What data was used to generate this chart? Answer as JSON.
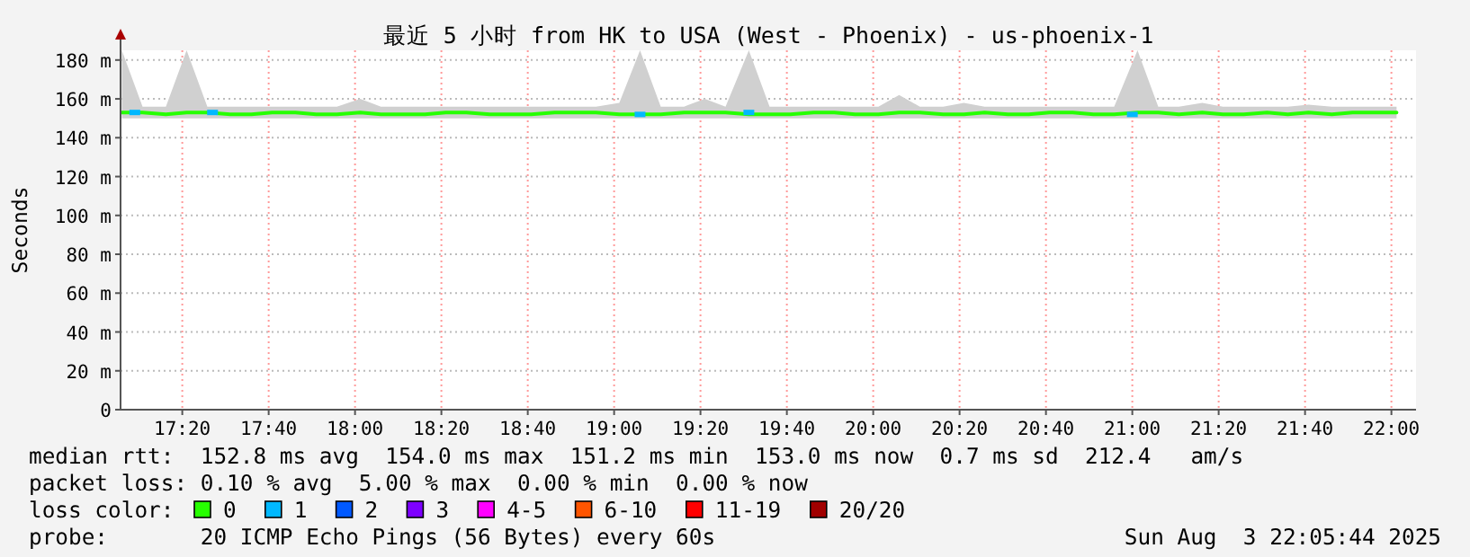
{
  "chart_data": {
    "type": "line",
    "title": "最近 5 小时 from HK to USA (West - Phoenix) - us-phoenix-1",
    "ylabel": "Seconds",
    "legend_title": "loss color:",
    "legend": "bottom",
    "grid": true,
    "xlim": [
      17.095,
      22.095
    ],
    "xticks": [
      {
        "value": 17.3333,
        "label": "17:20"
      },
      {
        "value": 17.6667,
        "label": "17:40"
      },
      {
        "value": 18,
        "label": "18:00"
      },
      {
        "value": 18.3333,
        "label": "18:20"
      },
      {
        "value": 18.6667,
        "label": "18:40"
      },
      {
        "value": 19,
        "label": "19:00"
      },
      {
        "value": 19.3333,
        "label": "19:20"
      },
      {
        "value": 19.6667,
        "label": "19:40"
      },
      {
        "value": 20,
        "label": "20:00"
      },
      {
        "value": 20.3333,
        "label": "20:20"
      },
      {
        "value": 20.6667,
        "label": "20:40"
      },
      {
        "value": 21,
        "label": "21:00"
      },
      {
        "value": 21.3333,
        "label": "21:20"
      },
      {
        "value": 21.6667,
        "label": "21:40"
      },
      {
        "value": 22,
        "label": "22:00"
      }
    ],
    "ylim": [
      0,
      185
    ],
    "yticks": [
      0,
      {
        "value": 20,
        "label": "20 m"
      },
      {
        "value": 40,
        "label": "40 m"
      },
      {
        "value": 60,
        "label": "60 m"
      },
      {
        "value": 80,
        "label": "80 m"
      },
      {
        "value": 100,
        "label": "100 m"
      },
      {
        "value": 120,
        "label": "120 m"
      },
      {
        "value": 140,
        "label": "140 m"
      },
      {
        "value": 160,
        "label": "160 m"
      },
      {
        "value": 180,
        "label": "180 m"
      }
    ],
    "series": [
      {
        "name": "0",
        "color": "#26ff00",
        "x": [
          17.1,
          17.18,
          17.27,
          17.35,
          17.43,
          17.52,
          17.6,
          17.68,
          17.77,
          17.85,
          17.93,
          18.02,
          18.1,
          18.18,
          18.27,
          18.35,
          18.43,
          18.52,
          18.6,
          18.68,
          18.77,
          18.85,
          18.93,
          19.02,
          19.1,
          19.18,
          19.27,
          19.35,
          19.43,
          19.52,
          19.6,
          19.68,
          19.77,
          19.85,
          19.93,
          20.02,
          20.1,
          20.18,
          20.27,
          20.35,
          20.43,
          20.52,
          20.6,
          20.68,
          20.77,
          20.85,
          20.93,
          21.02,
          21.1,
          21.18,
          21.27,
          21.35,
          21.43,
          21.52,
          21.6,
          21.68,
          21.77,
          21.85,
          21.93,
          22.02
        ],
        "values": [
          153,
          153,
          152,
          153,
          153,
          152,
          152,
          153,
          153,
          152,
          152,
          153,
          152,
          152,
          152,
          153,
          153,
          152,
          152,
          152,
          153,
          153,
          153,
          152,
          152,
          152,
          153,
          153,
          153,
          152,
          152,
          152,
          153,
          153,
          152,
          152,
          153,
          153,
          152,
          152,
          153,
          152,
          152,
          153,
          153,
          152,
          152,
          153,
          153,
          152,
          153,
          152,
          152,
          153,
          152,
          153,
          152,
          153,
          153,
          153
        ],
        "lower": [
          150,
          150,
          150,
          150,
          150,
          150,
          150,
          150,
          150,
          150,
          150,
          150,
          150,
          150,
          150,
          150,
          150,
          150,
          150,
          150,
          150,
          150,
          150,
          150,
          150,
          150,
          150,
          150,
          150,
          150,
          150,
          150,
          150,
          150,
          150,
          150,
          150,
          150,
          150,
          150,
          150,
          150,
          150,
          150,
          150,
          150,
          150,
          150,
          150,
          150,
          150,
          150,
          150,
          150,
          150,
          150,
          150,
          150,
          150,
          150
        ],
        "upper": [
          185,
          156,
          156,
          185,
          156,
          156,
          156,
          156,
          156,
          156,
          156,
          160,
          156,
          156,
          156,
          156,
          156,
          156,
          156,
          156,
          156,
          156,
          156,
          158,
          185,
          156,
          156,
          160,
          156,
          185,
          156,
          156,
          156,
          156,
          156,
          156,
          162,
          156,
          156,
          158,
          156,
          156,
          156,
          156,
          156,
          156,
          156,
          185,
          156,
          156,
          158,
          156,
          156,
          156,
          156,
          157,
          156,
          156,
          156,
          156
        ]
      },
      {
        "name": "1",
        "color": "#00b8ff",
        "type": "scatter",
        "marker": "square",
        "x": [
          17.15,
          17.45,
          19.1,
          19.52,
          21.0
        ],
        "values": [
          153,
          153,
          152,
          153,
          152
        ]
      },
      {
        "name": "2",
        "color": "#0059ff"
      },
      {
        "name": "3",
        "color": "#7e00ff"
      },
      {
        "name": "4-5",
        "color": "#ff00ff"
      },
      {
        "name": "6-10",
        "color": "#ff5500"
      },
      {
        "name": "11-19",
        "color": "#ff0000"
      },
      {
        "name": "20/20",
        "color": "#a10000"
      }
    ],
    "annotations": [
      "median rtt:  152.8 ms avg  154.0 ms max  151.2 ms min  153.0 ms now  0.7 ms sd  212.4   am/s",
      "packet loss: 0.10 % avg  5.00 % max  0.00 % min  0.00 % now",
      "probe:       20 ICMP Echo Pings (56 Bytes) every 60s",
      "Sun Aug  3 22:05:44 2025"
    ]
  }
}
